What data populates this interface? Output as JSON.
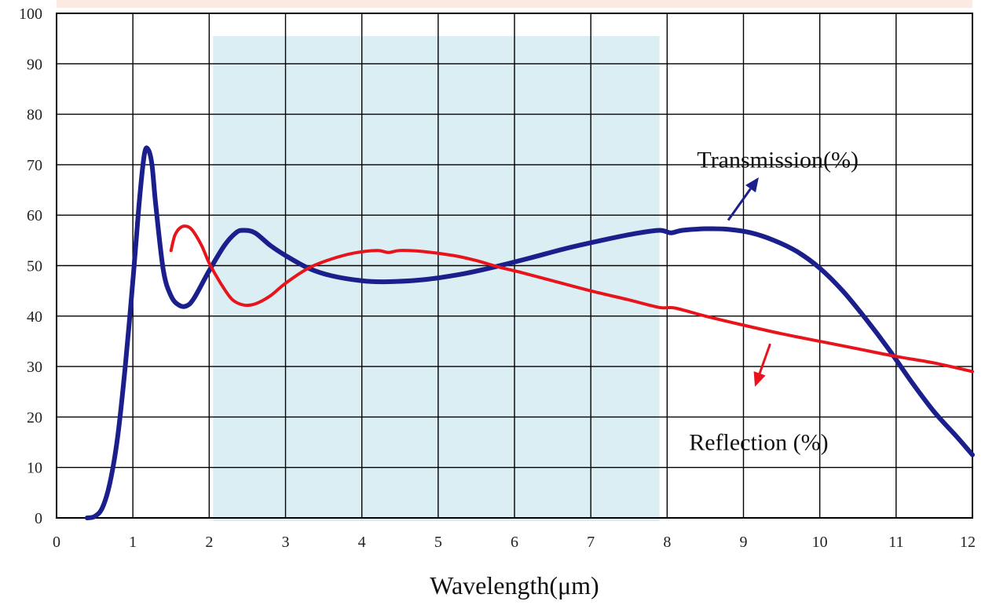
{
  "chart_data": {
    "type": "line",
    "title": "",
    "xlabel": "Wavelength(μm)",
    "ylabel": "",
    "xlim": [
      0,
      12
    ],
    "ylim": [
      0,
      100
    ],
    "x_ticks": [
      0,
      1,
      2,
      3,
      4,
      5,
      6,
      7,
      8,
      9,
      10,
      11,
      12
    ],
    "y_ticks": [
      0,
      10,
      20,
      30,
      40,
      50,
      60,
      70,
      80,
      90,
      100
    ],
    "grid": true,
    "legend": "none",
    "shaded_band": {
      "x_from": 2.05,
      "x_to": 7.9,
      "y_to": 95.5,
      "color": "#dbeef4"
    },
    "top_band_color": "#fbe9e2",
    "series": [
      {
        "name": "Transmission(%)",
        "color": "#1a1f8c",
        "points": [
          [
            0.4,
            0
          ],
          [
            0.5,
            0.3
          ],
          [
            0.6,
            2
          ],
          [
            0.7,
            7
          ],
          [
            0.8,
            16
          ],
          [
            0.9,
            30
          ],
          [
            1.0,
            47
          ],
          [
            1.08,
            62
          ],
          [
            1.15,
            72
          ],
          [
            1.2,
            73
          ],
          [
            1.25,
            70
          ],
          [
            1.3,
            62
          ],
          [
            1.4,
            49
          ],
          [
            1.5,
            44
          ],
          [
            1.6,
            42.2
          ],
          [
            1.7,
            42
          ],
          [
            1.8,
            43.5
          ],
          [
            2.0,
            49
          ],
          [
            2.2,
            54
          ],
          [
            2.35,
            56.5
          ],
          [
            2.45,
            57
          ],
          [
            2.6,
            56.5
          ],
          [
            2.8,
            54
          ],
          [
            3.0,
            52
          ],
          [
            3.3,
            49.5
          ],
          [
            3.6,
            48
          ],
          [
            4.0,
            47
          ],
          [
            4.3,
            46.8
          ],
          [
            4.8,
            47.2
          ],
          [
            5.3,
            48.3
          ],
          [
            5.7,
            49.6
          ],
          [
            6.2,
            51.5
          ],
          [
            6.7,
            53.5
          ],
          [
            7.2,
            55.2
          ],
          [
            7.6,
            56.4
          ],
          [
            7.9,
            57
          ],
          [
            8.05,
            56.5
          ],
          [
            8.2,
            57
          ],
          [
            8.5,
            57.3
          ],
          [
            8.8,
            57.2
          ],
          [
            9.1,
            56.5
          ],
          [
            9.4,
            55
          ],
          [
            9.7,
            52.8
          ],
          [
            10.0,
            49.5
          ],
          [
            10.3,
            45
          ],
          [
            10.6,
            39.5
          ],
          [
            10.9,
            33.5
          ],
          [
            11.2,
            27
          ],
          [
            11.5,
            21
          ],
          [
            11.8,
            16
          ],
          [
            12.0,
            12.5
          ]
        ]
      },
      {
        "name": "Reflection (%)",
        "color": "#e8141b",
        "points": [
          [
            1.5,
            53
          ],
          [
            1.55,
            56
          ],
          [
            1.62,
            57.5
          ],
          [
            1.7,
            57.8
          ],
          [
            1.78,
            57
          ],
          [
            1.9,
            54
          ],
          [
            2.0,
            50.5
          ],
          [
            2.15,
            46.5
          ],
          [
            2.3,
            43.3
          ],
          [
            2.45,
            42.2
          ],
          [
            2.6,
            42.4
          ],
          [
            2.8,
            44
          ],
          [
            3.0,
            46.5
          ],
          [
            3.3,
            49.5
          ],
          [
            3.6,
            51.3
          ],
          [
            3.9,
            52.5
          ],
          [
            4.2,
            53
          ],
          [
            4.35,
            52.6
          ],
          [
            4.5,
            53
          ],
          [
            4.8,
            52.8
          ],
          [
            5.2,
            52
          ],
          [
            5.5,
            51
          ],
          [
            5.8,
            49.7
          ],
          [
            6.1,
            48.6
          ],
          [
            6.5,
            47
          ],
          [
            7.0,
            45
          ],
          [
            7.5,
            43.2
          ],
          [
            7.9,
            41.7
          ],
          [
            8.1,
            41.6
          ],
          [
            8.5,
            40
          ],
          [
            9.0,
            38.2
          ],
          [
            9.5,
            36.5
          ],
          [
            10.0,
            35
          ],
          [
            10.5,
            33.5
          ],
          [
            11.0,
            32
          ],
          [
            11.5,
            30.7
          ],
          [
            12.0,
            29
          ]
        ]
      }
    ],
    "annotations": [
      {
        "text": "Transmission(%)",
        "x": 9.45,
        "y": 71,
        "color": "#111111"
      },
      {
        "text": "Reflection (%)",
        "x": 9.2,
        "y": 15,
        "color": "#111111"
      }
    ],
    "arrows": [
      {
        "color": "#1a1f8c",
        "from": [
          8.8,
          59
        ],
        "to": [
          9.2,
          67.5
        ]
      },
      {
        "color": "#e8141b",
        "from": [
          9.35,
          34.5
        ],
        "to": [
          9.15,
          26
        ]
      }
    ]
  }
}
